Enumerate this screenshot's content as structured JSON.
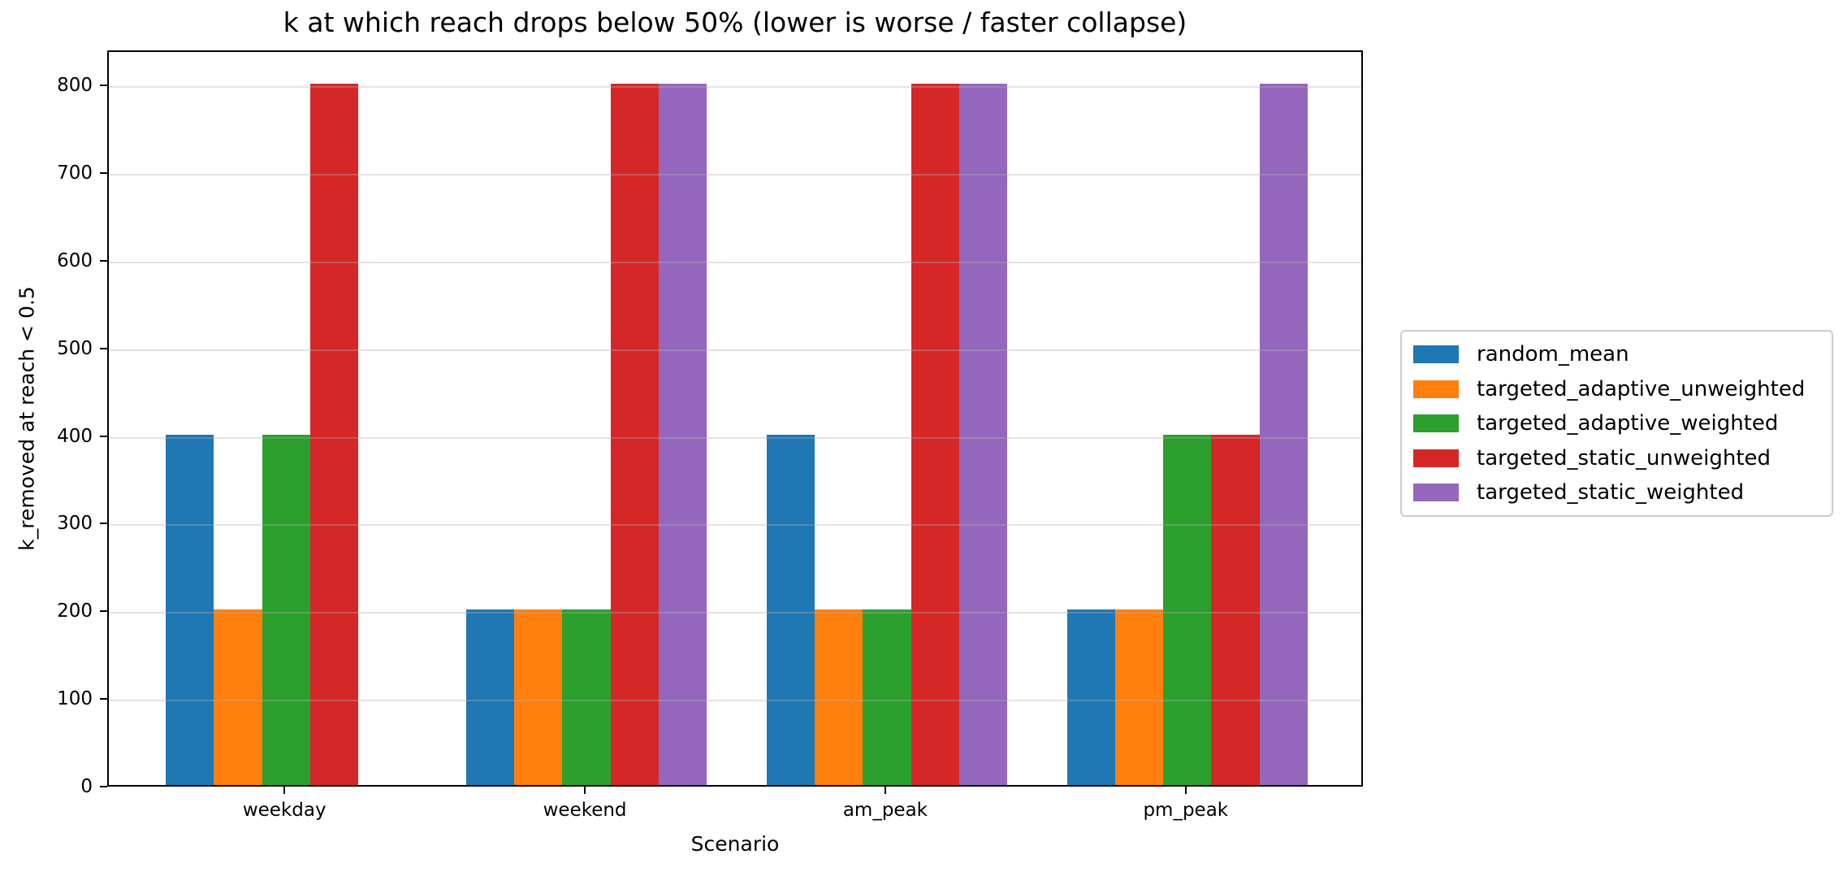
{
  "chart_data": {
    "type": "bar",
    "title": "k at which reach drops below 50% (lower is worse / faster collapse)",
    "xlabel": "Scenario",
    "ylabel": "k_removed at reach < 0.5",
    "categories": [
      "weekday",
      "weekend",
      "am_peak",
      "pm_peak"
    ],
    "series": [
      {
        "name": "random_mean",
        "color": "#1f77b4",
        "values": [
          400,
          200,
          400,
          200
        ]
      },
      {
        "name": "targeted_adaptive_unweighted",
        "color": "#ff7f0e",
        "values": [
          200,
          200,
          200,
          200
        ]
      },
      {
        "name": "targeted_adaptive_weighted",
        "color": "#2ca02c",
        "values": [
          400,
          200,
          200,
          400
        ]
      },
      {
        "name": "targeted_static_unweighted",
        "color": "#d62728",
        "values": [
          800,
          800,
          800,
          400
        ]
      },
      {
        "name": "targeted_static_weighted",
        "color": "#9467bd",
        "values": [
          0,
          800,
          800,
          800
        ]
      }
    ],
    "yticks": [
      0,
      100,
      200,
      300,
      400,
      500,
      600,
      700,
      800
    ],
    "ylim": [
      0,
      840
    ],
    "grid": "horizontal",
    "grid_above_bars": true,
    "legend_position": "center-right-outside",
    "bar_group_total_width": 0.8,
    "axis_color": "#000000",
    "gridline_color": "#b0b0b0",
    "background_color": "#ffffff"
  }
}
